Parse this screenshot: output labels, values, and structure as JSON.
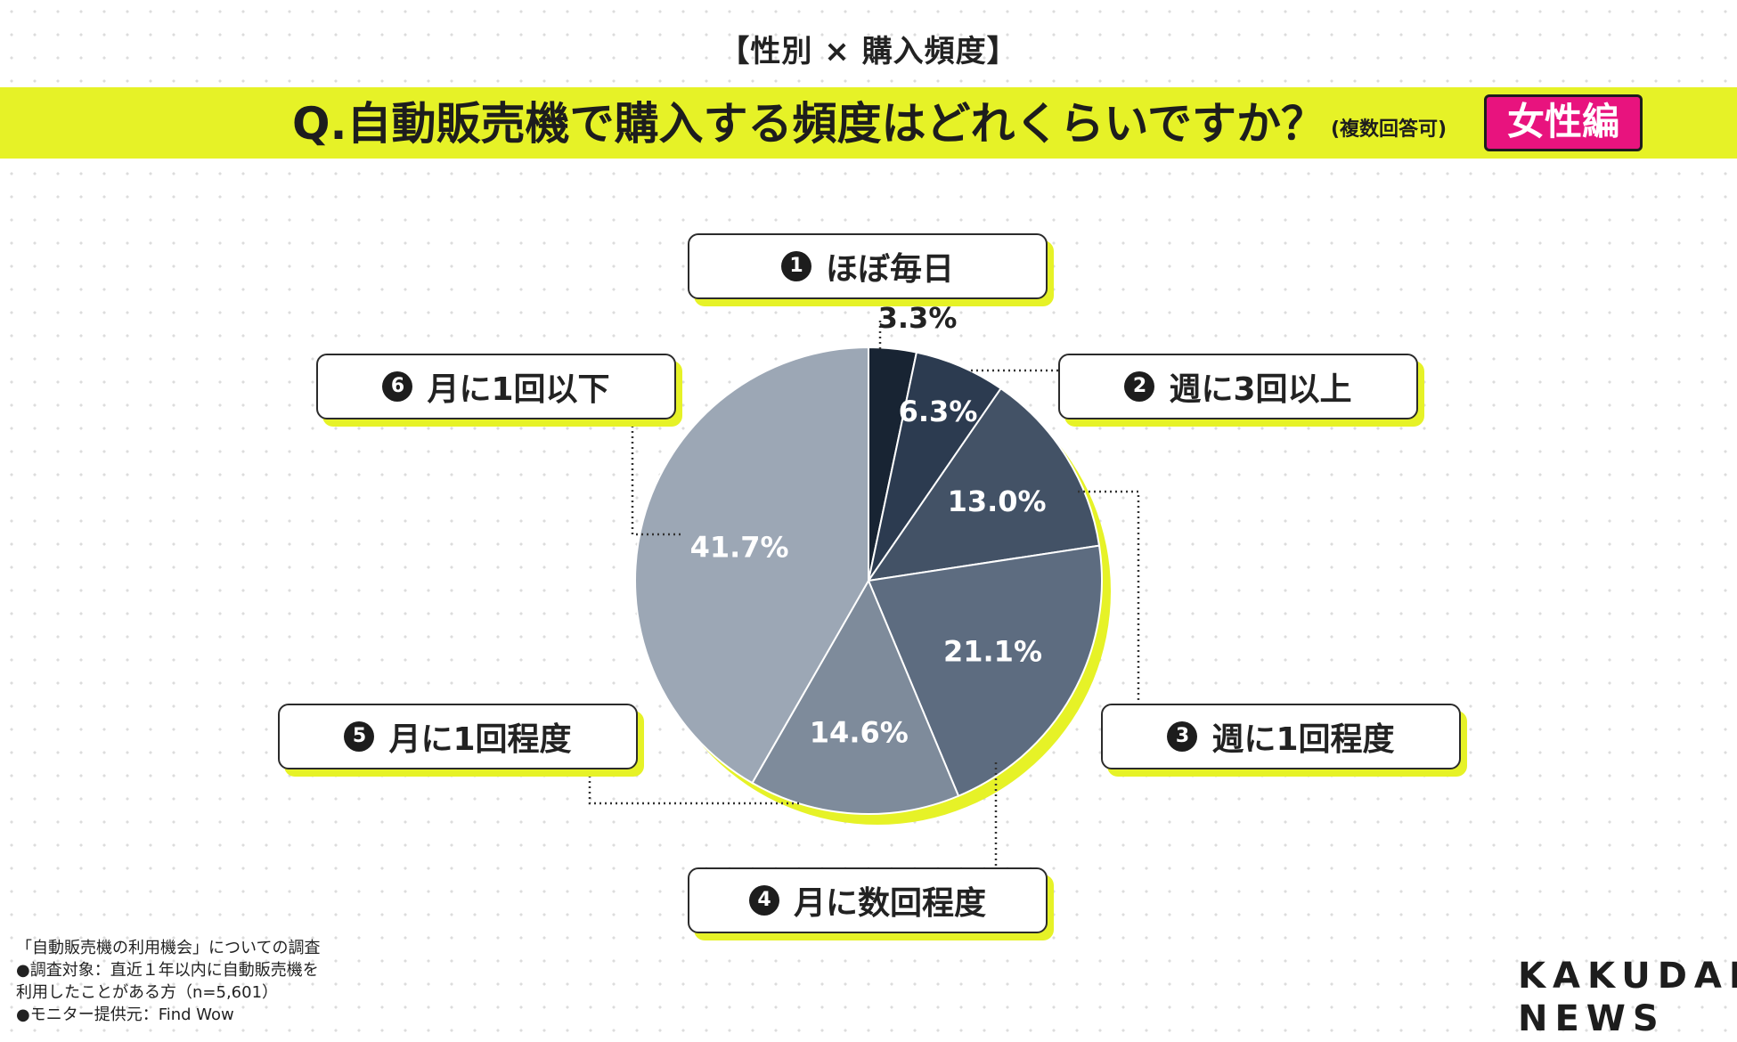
{
  "header": {
    "tag": "【性別 × 購入頻度】",
    "question": "Q.自動販売機で購入する頻度はどれくらいですか？",
    "question_note": "(複数回答可)",
    "badge": "女性編"
  },
  "chart_data": {
    "type": "pie",
    "categories": [
      "ほぼ毎日",
      "週に3回以上",
      "週に1回程度",
      "月に数回程度",
      "月に1回程度",
      "月に1回以下"
    ],
    "values": [
      3.3,
      6.3,
      13.0,
      21.1,
      14.6,
      41.7
    ],
    "value_labels": [
      "3.3%",
      "6.3%",
      "13.0%",
      "21.1%",
      "14.6%",
      "41.7%"
    ],
    "markers": [
      "1",
      "2",
      "3",
      "4",
      "5",
      "6"
    ],
    "colors": [
      "#182433",
      "#2c3b50",
      "#435266",
      "#5d6c80",
      "#7e8b9b",
      "#9ca7b5"
    ],
    "shadow_color": "#e6f227",
    "legend": "callout boxes around pie",
    "start": "12 o'clock, clockwise"
  },
  "footer": {
    "survey_title": "「自動販売機の利用機会」についての調査",
    "target_line1": "●調査対象：直近１年以内に自動販売機を",
    "target_line2": "利用したことがある方（n=5,601）",
    "provider": "●モニター提供元：Find Wow"
  },
  "logo": {
    "line1": "KAKUDAI",
    "line2": "NEWS"
  }
}
